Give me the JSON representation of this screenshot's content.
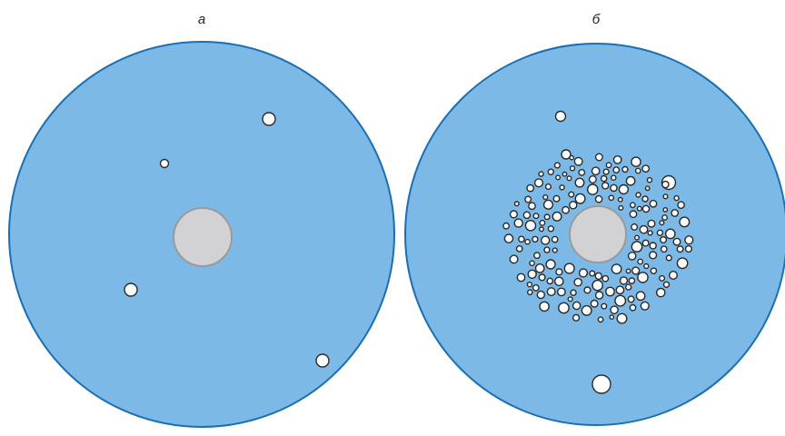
{
  "colors": {
    "dish_fill": "#7cb9e6",
    "dish_stroke": "#1a6fb3",
    "center_fill": "#d2d2d4",
    "center_stroke": "#9a9a9a",
    "colony_fill": "#ffffff",
    "colony_stroke": "#2a2a2a"
  },
  "panels": [
    {
      "label": "а"
    },
    {
      "label": "б"
    }
  ]
}
